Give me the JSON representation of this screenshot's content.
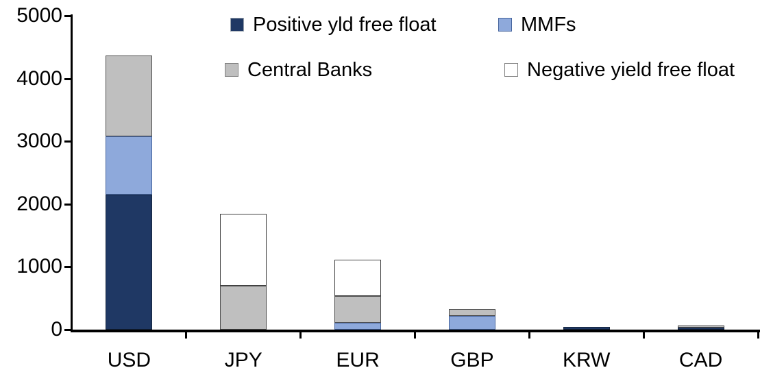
{
  "chart_data": {
    "type": "bar",
    "stacked": true,
    "title": "",
    "xlabel": "",
    "ylabel": "",
    "categories": [
      "USD",
      "JPY",
      "EUR",
      "GBP",
      "KRW",
      "CAD"
    ],
    "series": [
      {
        "name": "Positive yld free float",
        "color": "#1f3864",
        "border": "#15243d",
        "values": [
          2150,
          0,
          0,
          0,
          40,
          30
        ]
      },
      {
        "name": "MMFs",
        "color": "#8ea9db",
        "border": "#44639c",
        "values": [
          930,
          0,
          110,
          220,
          0,
          0
        ]
      },
      {
        "name": "Central Banks",
        "color": "#bfbfbf",
        "border": "#4d4d4d",
        "values": [
          1290,
          700,
          430,
          110,
          0,
          35
        ]
      },
      {
        "name": "Negative yield free float",
        "color": "#ffffff",
        "border": "#404040",
        "values": [
          0,
          1140,
          570,
          0,
          0,
          0
        ]
      }
    ],
    "totals": [
      4370,
      1840,
      1110,
      330,
      40,
      65
    ],
    "ylim": [
      0,
      5000
    ],
    "ytick_interval": 1000,
    "yticks": [
      "0",
      "1000",
      "2000",
      "3000",
      "4000",
      "5000"
    ],
    "grid": false,
    "legend_position": "top",
    "axis_color": "#000000"
  },
  "legend": {
    "items": [
      {
        "label": "Positive yld free float",
        "color": "#1f3864",
        "border": "#9aa3ad"
      },
      {
        "label": "MMFs",
        "color": "#8ea9db",
        "border": "#44639c"
      },
      {
        "label": "Central Banks",
        "color": "#bfbfbf",
        "border": "#7f7f7f"
      },
      {
        "label": "Negative yield free float",
        "color": "#ffffff",
        "border": "#7f7f7f"
      }
    ]
  }
}
